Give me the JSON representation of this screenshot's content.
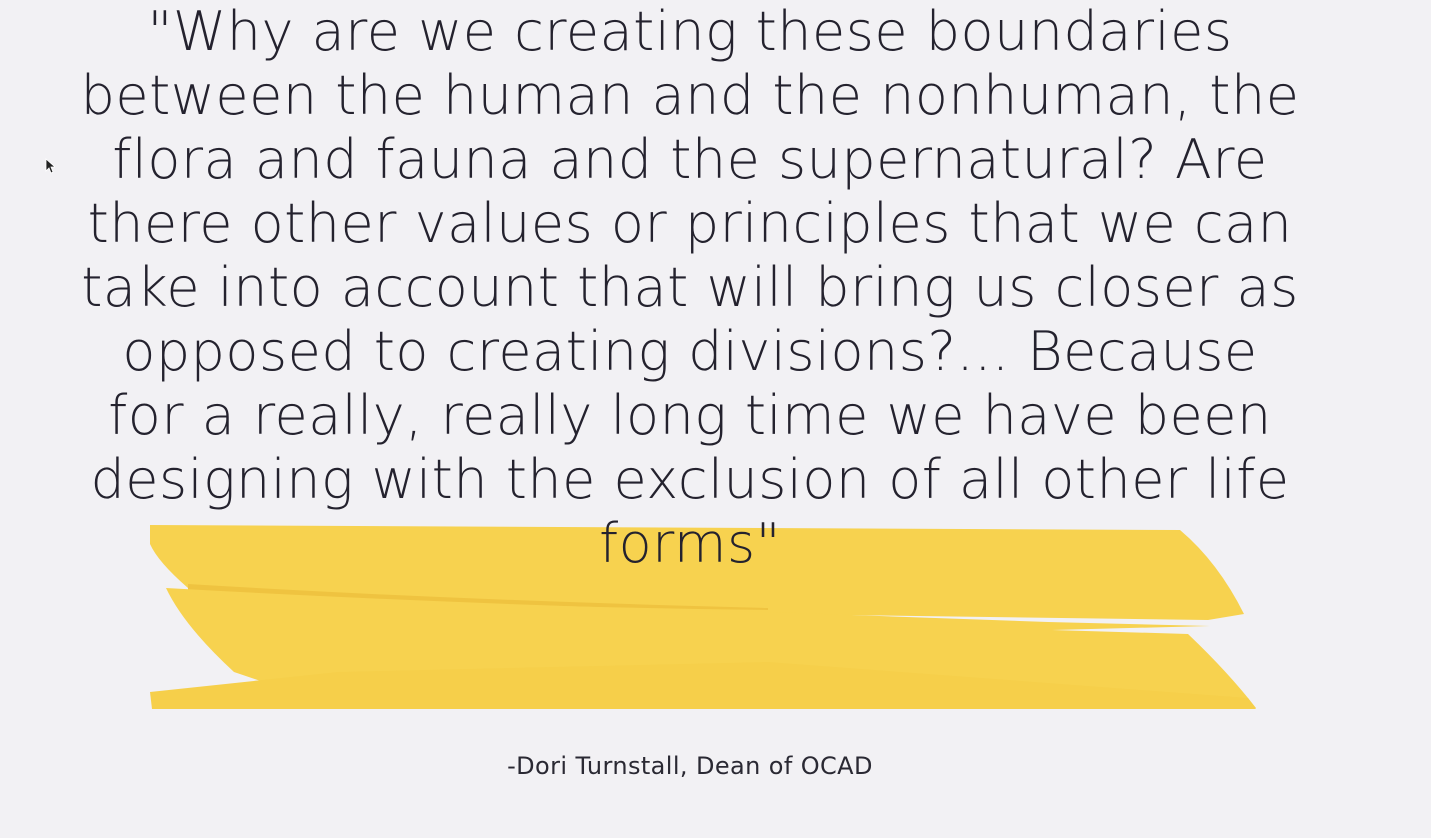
{
  "quote": {
    "lines": [
      "\"Why are we creating these boundaries",
      "between the human and the nonhuman, the",
      "flora and fauna and the supernatural? Are",
      "there other values or principles that we can",
      "take into account that will bring us closer as",
      "opposed to creating divisions?... Because",
      "for a really, really long time we have been",
      "designing with the exclusion of all other life",
      "forms\""
    ]
  },
  "attribution": "-Dori Turnstall, Dean of OCAD",
  "colors": {
    "background": "#f2f1f4",
    "text": "#24222e",
    "highlight": "#f7d24f",
    "highlight_shadow": "#efc340"
  },
  "icons": {
    "cursor": "mouse-pointer-icon"
  }
}
